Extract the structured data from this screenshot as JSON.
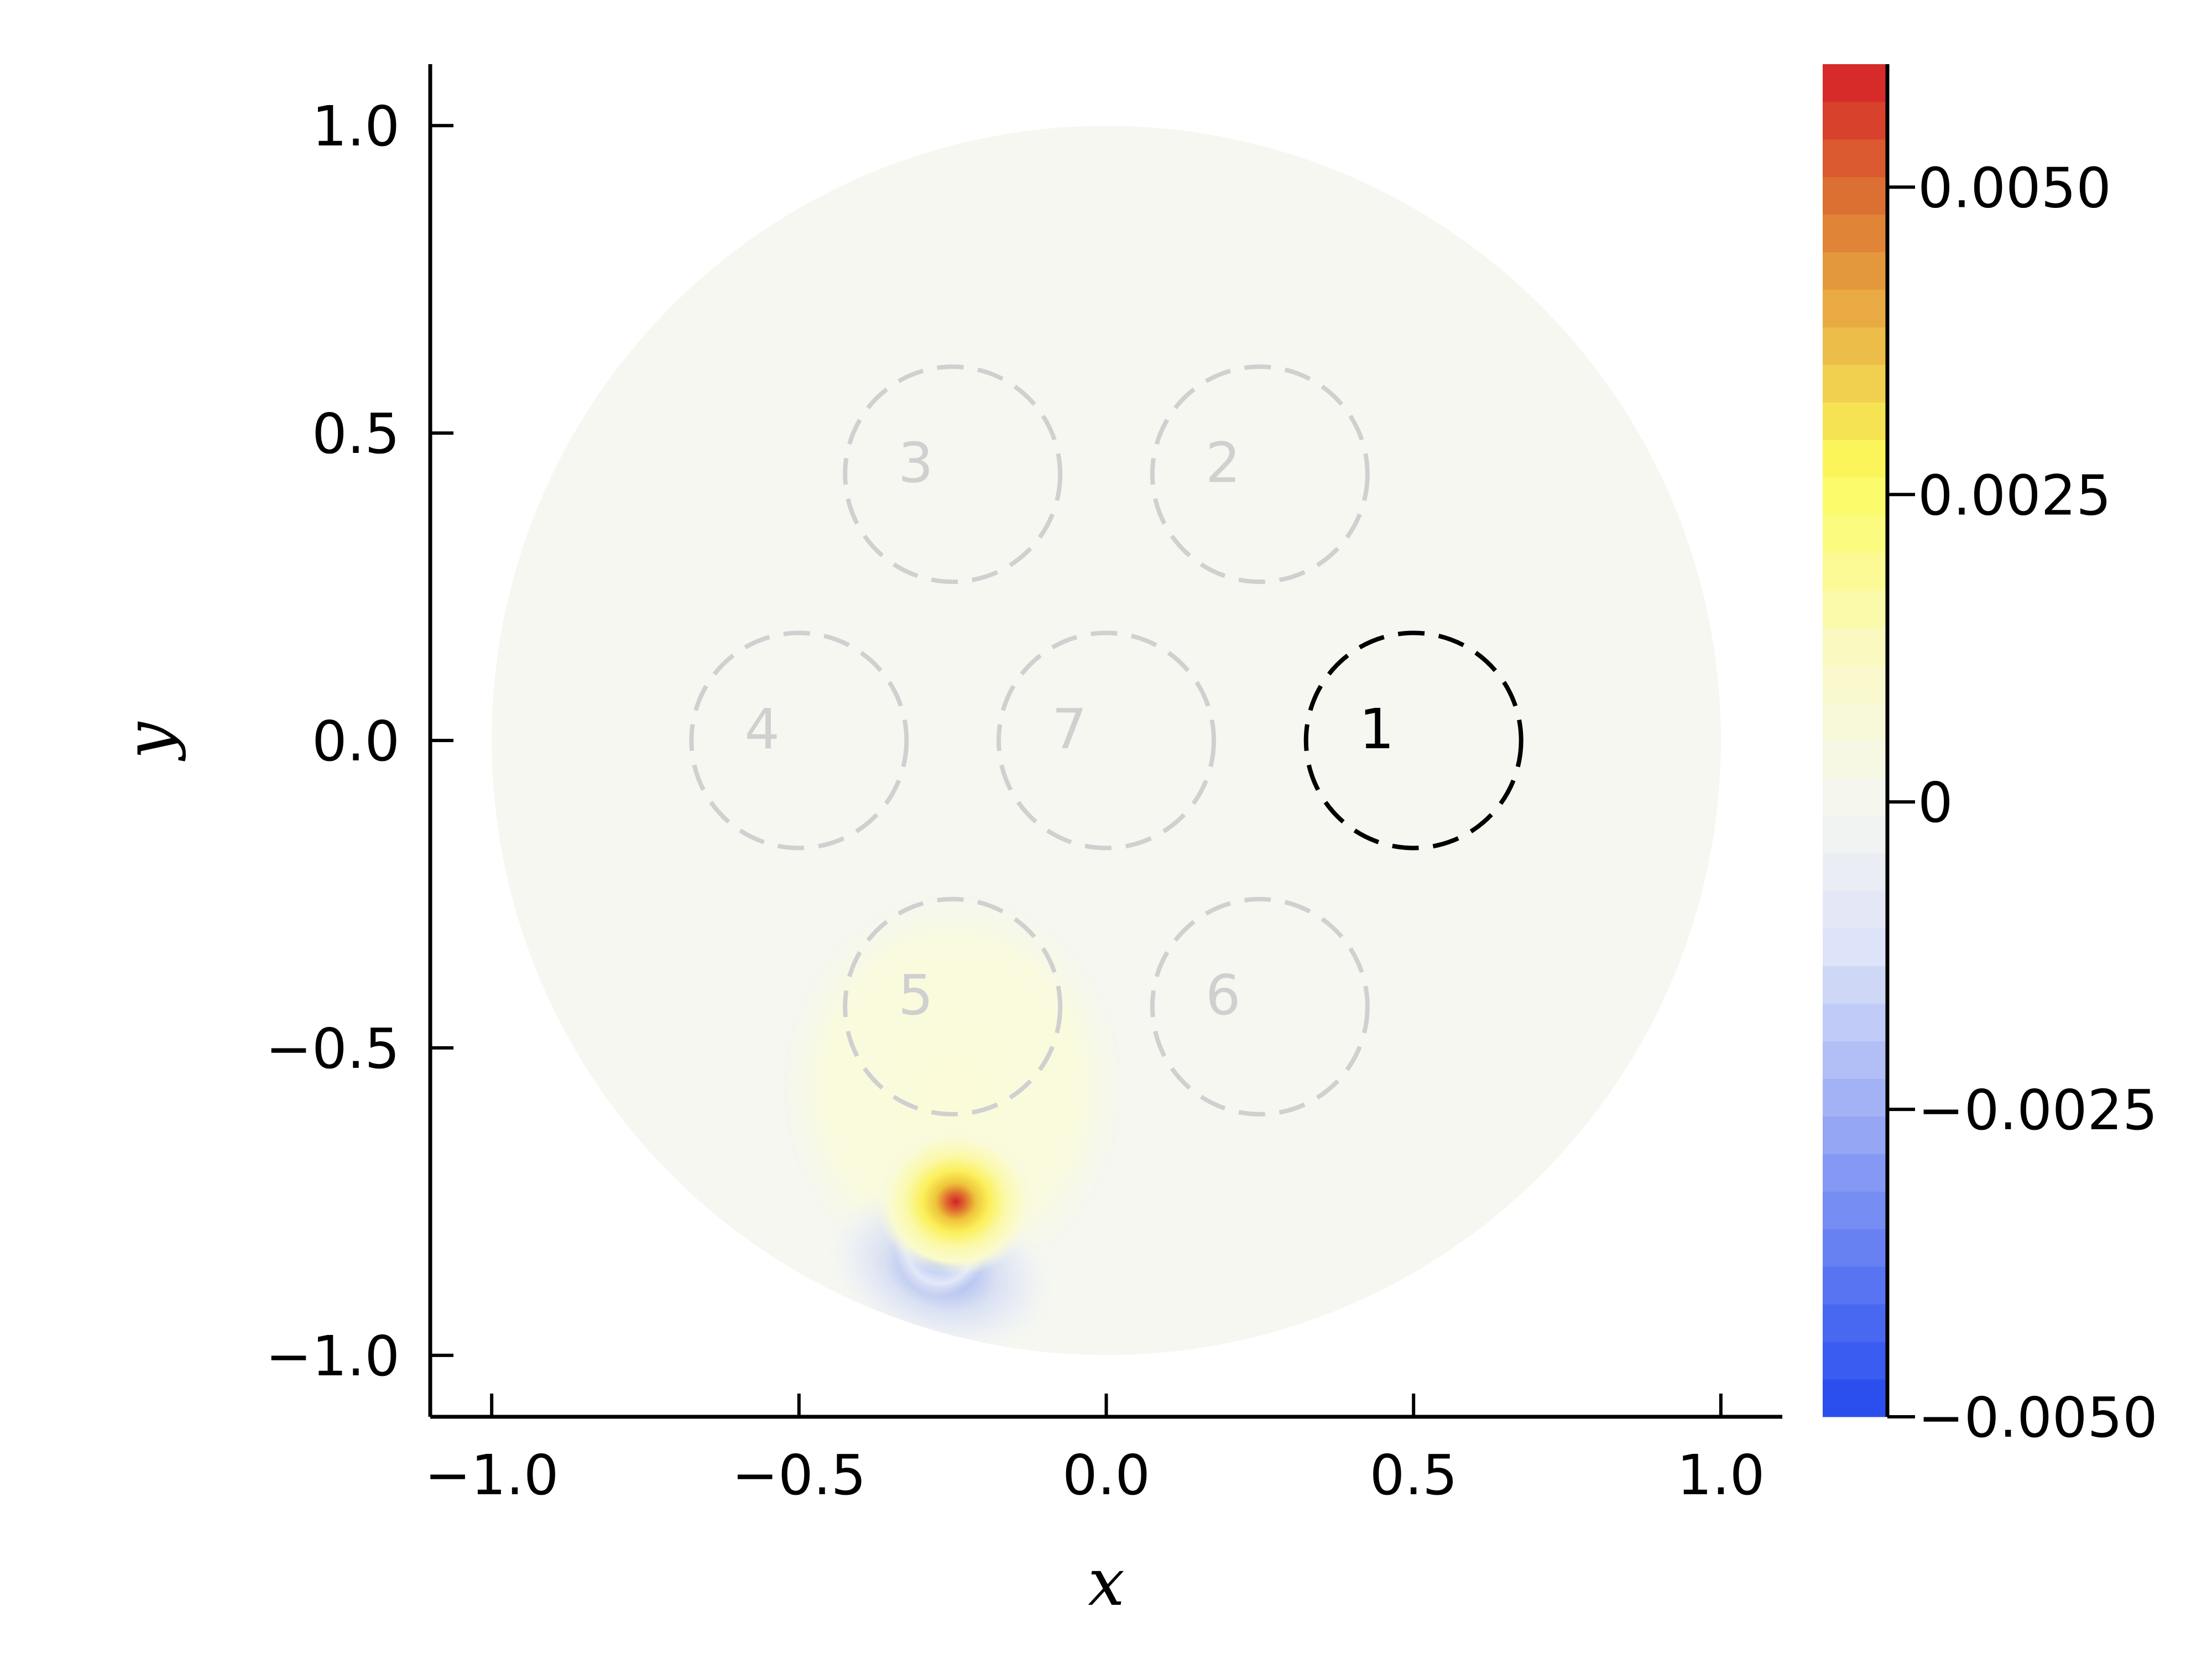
{
  "chart_data": {
    "type": "heatmap",
    "title": "",
    "xlabel": "x",
    "ylabel": "y",
    "xlim": [
      -1.1,
      1.1
    ],
    "ylim": [
      -1.1,
      1.1
    ],
    "x_ticks": [
      -1.0,
      -0.5,
      0.0,
      0.5,
      1.0
    ],
    "x_tick_labels": [
      "−1.0",
      "−0.5",
      "0.0",
      "0.5",
      "1.0"
    ],
    "y_ticks": [
      -1.0,
      -0.5,
      0.0,
      0.5,
      1.0
    ],
    "y_tick_labels": [
      "−1.0",
      "−0.5",
      "0.0",
      "0.5",
      "1.0"
    ],
    "grid": false,
    "domain": {
      "shape": "disk",
      "center": [
        0.0,
        0.0
      ],
      "radius": 1.0
    },
    "colorbar": {
      "range": [
        -0.005,
        0.006
      ],
      "levels": 36,
      "ticks": [
        0.005,
        0.0025,
        0.0,
        -0.0025,
        -0.005
      ],
      "tick_labels": [
        "0.0050",
        "0.0025",
        "0",
        "−0.0025",
        "−0.0050"
      ],
      "colors": {
        "min": "#2449ef",
        "mid_low": "#dde3f8",
        "zero": "#f5f7f0",
        "mid_high": "#fafac4",
        "yellow": "#fcfb5c",
        "orange": "#dd7a34",
        "max": "#d51f27"
      }
    },
    "features": [
      {
        "label": "1",
        "x": 0.5,
        "y": 0.0,
        "r": 0.175,
        "highlighted": true
      },
      {
        "label": "2",
        "x": 0.25,
        "y": 0.433,
        "r": 0.175,
        "highlighted": false
      },
      {
        "label": "3",
        "x": -0.25,
        "y": 0.433,
        "r": 0.175,
        "highlighted": false
      },
      {
        "label": "4",
        "x": -0.5,
        "y": 0.0,
        "r": 0.175,
        "highlighted": false
      },
      {
        "label": "5",
        "x": -0.25,
        "y": -0.433,
        "r": 0.175,
        "highlighted": false
      },
      {
        "label": "6",
        "x": 0.25,
        "y": -0.433,
        "r": 0.175,
        "highlighted": false
      },
      {
        "label": "7",
        "x": 0.0,
        "y": 0.0,
        "r": 0.175,
        "highlighted": false
      }
    ],
    "field_features": [
      {
        "kind": "positive-peak",
        "x": -0.245,
        "y": -0.765,
        "value": 0.006
      },
      {
        "kind": "negative-peak",
        "x": -0.27,
        "y": -0.82,
        "value": -0.005
      }
    ],
    "colors": {
      "highlighted_circle": "#000000",
      "inactive_circle": "#d0d0d0"
    }
  }
}
